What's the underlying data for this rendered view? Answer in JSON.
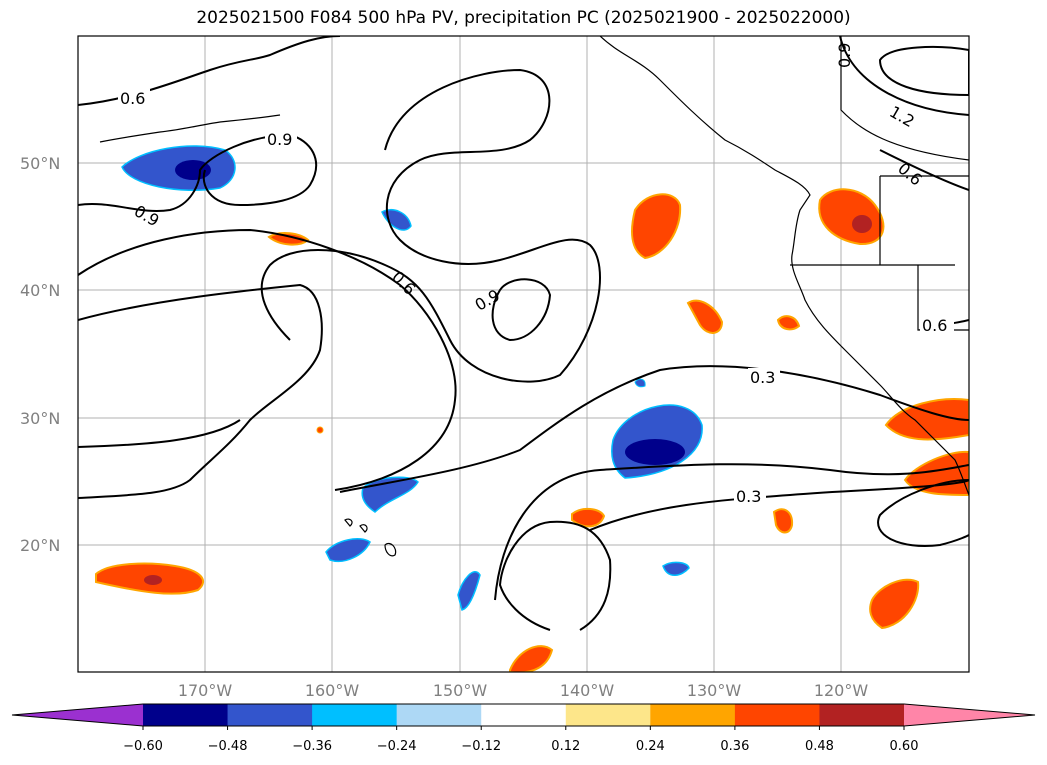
{
  "title": "2025021500 F084 500 hPa PV, precipitation PC (2025021900 - 2025022000)",
  "lat_labels": [
    "50°N",
    "40°N",
    "30°N",
    "20°N"
  ],
  "lon_labels": [
    "170°W",
    "160°W",
    "150°W",
    "140°W",
    "130°W",
    "120°W"
  ],
  "contour_labels": [
    "0.6",
    "0.9",
    "0.9",
    "0.6",
    "0.9",
    "0.3",
    "0.3",
    "0.6",
    "0.9",
    "1.2",
    "0.6",
    "0.6"
  ],
  "colorbar": {
    "colors": [
      "#9b30d0",
      "#00008b",
      "#3355cc",
      "#00bfff",
      "#add8f5",
      "#ffffff",
      "#fde68a",
      "#ffa500",
      "#ff4500",
      "#b22222",
      "#ff85a8"
    ],
    "tick_labels": [
      "−0.60",
      "−0.48",
      "−0.36",
      "−0.24",
      "−0.12",
      "0.12",
      "0.24",
      "0.36",
      "0.48",
      "0.60"
    ]
  },
  "legend_colors": {
    "positive_strong": "#ff4500",
    "positive_max": "#b22222",
    "positive_edge": "#ffa500",
    "positive_fringe": "#fde68a",
    "negative_strong": "#3355cc",
    "negative_max": "#00008b",
    "negative_edge": "#00bfff"
  }
}
